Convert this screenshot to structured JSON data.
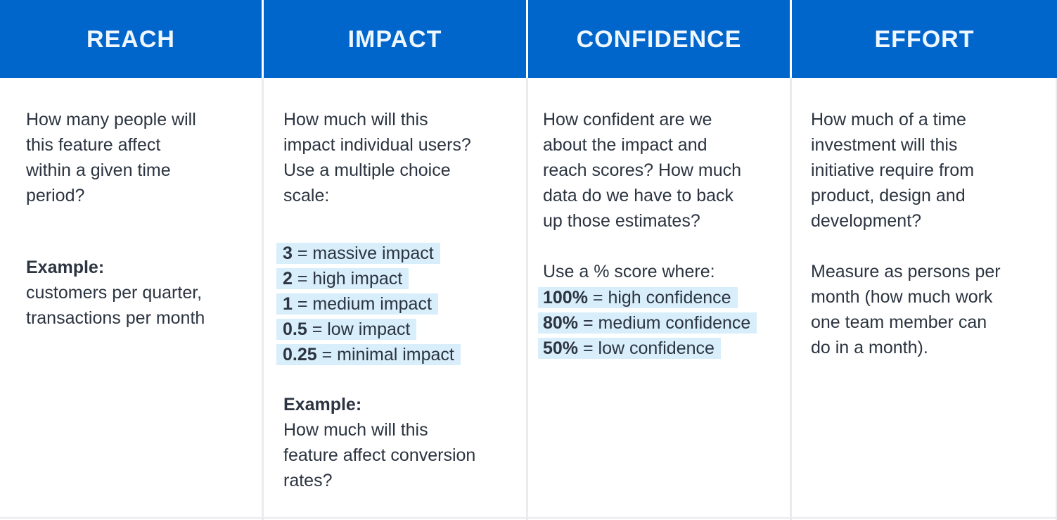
{
  "columns": [
    {
      "header": "REACH",
      "question": "How many people will this feature affect within a given time period?",
      "question_lines": [
        "How many people will",
        "this feature affect",
        "within a given time",
        "period?"
      ],
      "example_label": "Example:",
      "example_lines": [
        "customers per quarter,",
        "transactions per month"
      ]
    },
    {
      "header": "IMPACT",
      "question_lines": [
        "How much will this",
        "impact individual users?",
        "Use a multiple choice",
        "scale:"
      ],
      "scale": [
        {
          "value": "3",
          "label": " = massive impact"
        },
        {
          "value": "2",
          "label": " = high impact"
        },
        {
          "value": "1",
          "label": " = medium impact"
        },
        {
          "value": "0.5",
          "label": " = low impact"
        },
        {
          "value": "0.25",
          "label": " = minimal impact"
        }
      ],
      "example_label": "Example:",
      "example_lines": [
        "How much will this",
        "feature affect conversion",
        "rates?"
      ]
    },
    {
      "header": "CONFIDENCE",
      "question_lines": [
        "How confident are we",
        "about the impact and",
        "reach scores? How much",
        "data do we have to back",
        "up those estimates?"
      ],
      "score_intro": "Use a % score where:",
      "scale": [
        {
          "value": "100%",
          "label": " = high confidence"
        },
        {
          "value": "80%",
          "label": " = medium confidence"
        },
        {
          "value": "50%",
          "label": " = low confidence"
        }
      ]
    },
    {
      "header": "EFFORT",
      "question_lines": [
        "How much of a time",
        "investment will this",
        "initiative require from",
        "product, design and",
        "development?"
      ],
      "measure_lines": [
        "Measure as persons per",
        "month (how much work",
        "one team member can",
        "do in a month)."
      ]
    }
  ],
  "colors": {
    "header_bg": "#0066cc",
    "header_text": "#eef6ff",
    "body_text": "#2b3440",
    "highlight": "#d8eefa",
    "divider": "#e9ebee"
  }
}
